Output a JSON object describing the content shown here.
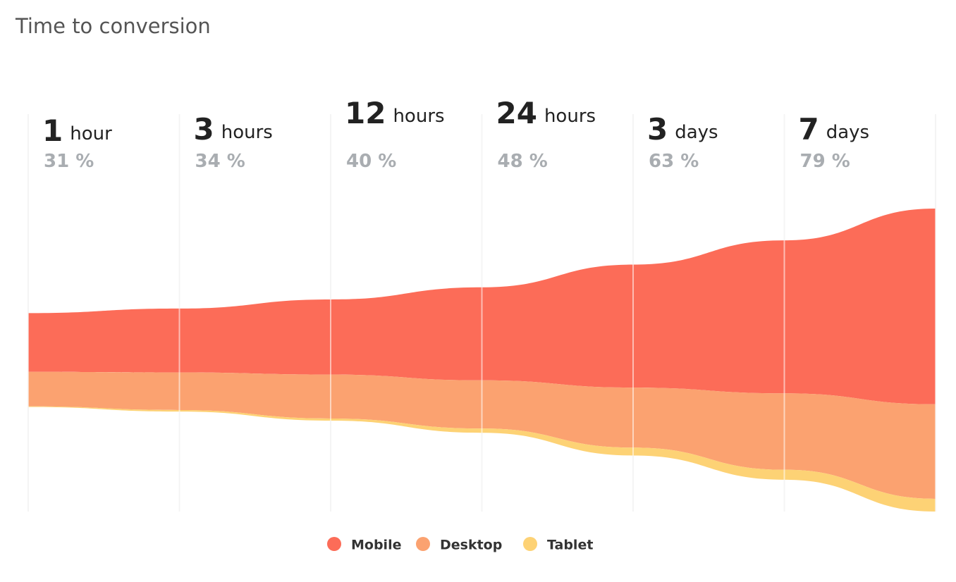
{
  "chart_data": {
    "type": "stream",
    "title": "Time to conversion",
    "categories": [
      "1",
      "3",
      "12",
      "24",
      "3",
      "7",
      null
    ],
    "units": [
      "hour",
      "hours",
      "hours",
      "hours",
      "days",
      "days",
      null
    ],
    "rate_labels": [
      "31 %",
      "34 %",
      "40 %",
      "48 %",
      "63 %",
      "79 %",
      null
    ],
    "series": [
      {
        "name": "Mobile",
        "color": "#fc6c58",
        "values": [
          19.4,
          21.1,
          24.8,
          30.7,
          40.6,
          50.5,
          64.6
        ]
      },
      {
        "name": "Desktop",
        "color": "#fba270",
        "values": [
          11.4,
          12.4,
          14.5,
          15.9,
          19.8,
          25.2,
          31.2
        ]
      },
      {
        "name": "Tablet",
        "color": "#fdd275",
        "values": [
          0.2,
          0.5,
          0.7,
          1.4,
          2.6,
          3.3,
          4.2
        ]
      }
    ]
  }
}
